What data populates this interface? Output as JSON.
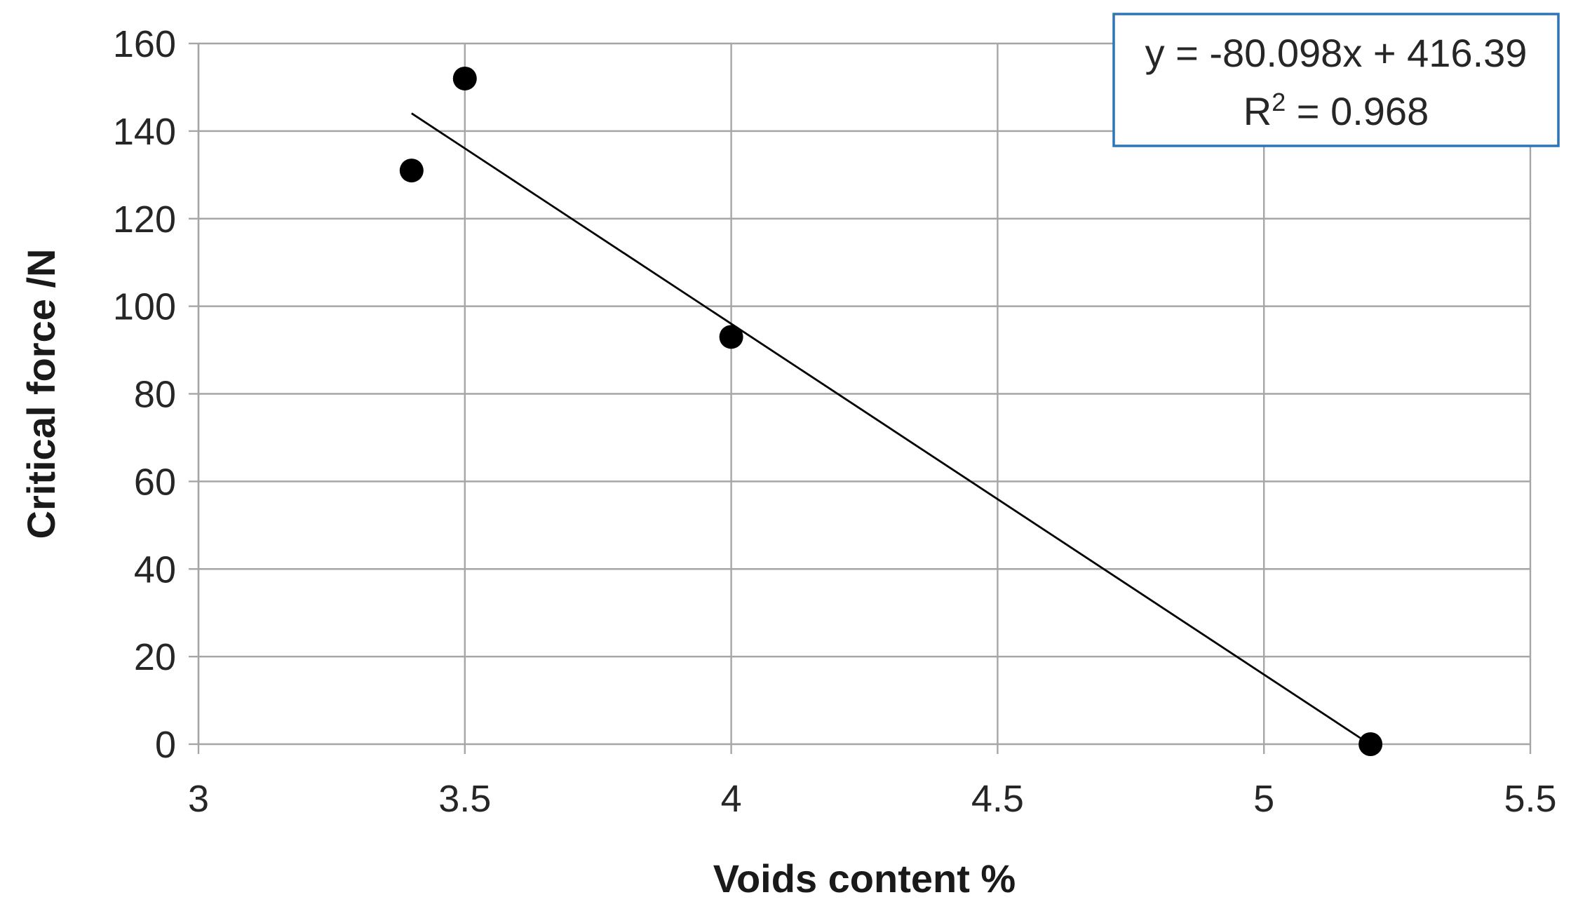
{
  "chart_data": {
    "type": "scatter",
    "title": "",
    "xlabel": "Voids content %",
    "ylabel": "Critical force /N",
    "xlim": [
      3,
      5.5
    ],
    "ylim": [
      0,
      160
    ],
    "xticks": [
      3,
      3.5,
      4,
      4.5,
      5,
      5.5
    ],
    "xtick_labels": [
      "3",
      "3.5",
      "4",
      "4.5",
      "5",
      "5.5"
    ],
    "yticks": [
      0,
      20,
      40,
      60,
      80,
      100,
      120,
      140,
      160
    ],
    "ytick_labels": [
      "0",
      "20",
      "40",
      "60",
      "80",
      "100",
      "120",
      "140",
      "160"
    ],
    "grid": true,
    "points": [
      {
        "x": 3.4,
        "y": 131
      },
      {
        "x": 3.5,
        "y": 152
      },
      {
        "x": 4.0,
        "y": 93
      },
      {
        "x": 5.2,
        "y": 0
      }
    ],
    "trendline": {
      "type": "linear",
      "slope": -80.098,
      "intercept": 416.39,
      "x_range": [
        3.4,
        5.2
      ]
    },
    "annotation": {
      "equation": "y = -80.098x + 416.39",
      "r_squared_prefix": "R",
      "r_squared_exp": "2",
      "r_squared_value": " = 0.968",
      "placement": "top-right"
    },
    "colors": {
      "points": "#000000",
      "trendline": "#000000",
      "grid": "#a6a6a6",
      "annotation_border": "#2e75b6"
    }
  }
}
